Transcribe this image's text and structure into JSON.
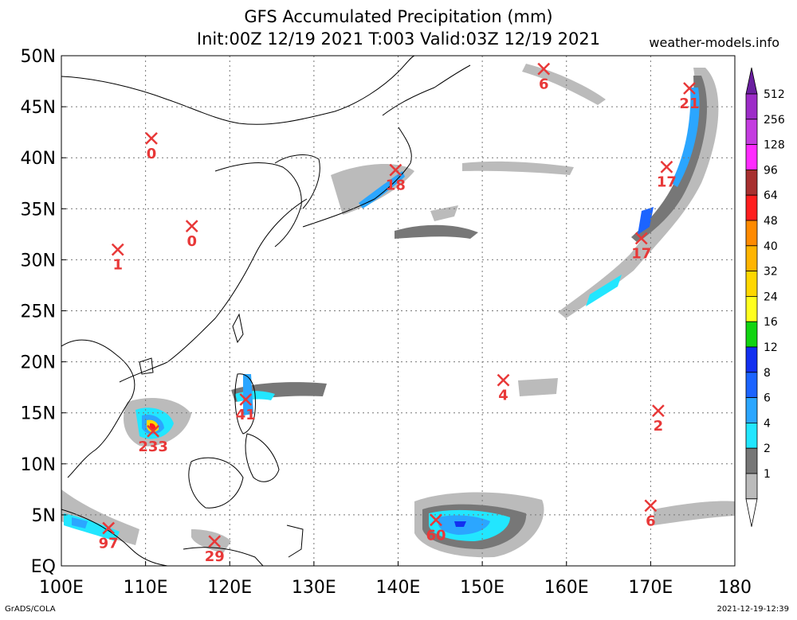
{
  "header": {
    "title_line1": "GFS Accumulated Precipitation (mm)",
    "title_line2": "Init:00Z 12/19 2021 T:003 Valid:03Z 12/19 2021",
    "credit": "weather-models.info"
  },
  "footer": {
    "left": "GrADS/COLA",
    "right": "2021-12-19-12:39"
  },
  "map": {
    "lon_labels": [
      "100E",
      "110E",
      "120E",
      "130E",
      "140E",
      "150E",
      "160E",
      "170E",
      "180"
    ],
    "lat_labels": [
      "50N",
      "45N",
      "40N",
      "35N",
      "30N",
      "25N",
      "20N",
      "15N",
      "10N",
      "5N",
      "EQ"
    ],
    "lon_range": [
      100,
      180
    ],
    "lat_range": [
      0,
      50
    ],
    "grid": "dotted"
  },
  "colorbar": {
    "levels": [
      "512",
      "256",
      "128",
      "96",
      "64",
      "48",
      "40",
      "32",
      "24",
      "16",
      "12",
      "8",
      "6",
      "4",
      "2",
      "1"
    ],
    "colors": [
      "#6a1f9f",
      "#9d2cc8",
      "#c43ce0",
      "#ff2bff",
      "#a8302f",
      "#ff1e1e",
      "#ff8a00",
      "#ffb400",
      "#ffd700",
      "#ffff1f",
      "#11d411",
      "#1230f0",
      "#1c64ff",
      "#2ba6ff",
      "#22e6ff",
      "#777777",
      "#bbbbbb",
      "#ffffff"
    ]
  },
  "markers": [
    {
      "label": "0",
      "lon": 110.7,
      "lat": 41.9
    },
    {
      "label": "0",
      "lon": 115.5,
      "lat": 33.3
    },
    {
      "label": "1",
      "lon": 106.7,
      "lat": 31.0
    },
    {
      "label": "18",
      "lon": 139.7,
      "lat": 38.8
    },
    {
      "label": "6",
      "lon": 157.3,
      "lat": 48.7
    },
    {
      "label": "21",
      "lon": 174.6,
      "lat": 46.8
    },
    {
      "label": "17",
      "lon": 171.9,
      "lat": 39.1
    },
    {
      "label": "17",
      "lon": 168.9,
      "lat": 32.1
    },
    {
      "label": "4",
      "lon": 152.5,
      "lat": 18.2
    },
    {
      "label": "2",
      "lon": 170.9,
      "lat": 15.2
    },
    {
      "label": "41",
      "lon": 121.9,
      "lat": 16.3
    },
    {
      "label": "233",
      "lon": 110.9,
      "lat": 13.2
    },
    {
      "label": "6",
      "lon": 170.0,
      "lat": 5.9
    },
    {
      "label": "60",
      "lon": 144.5,
      "lat": 4.5
    },
    {
      "label": "97",
      "lon": 105.6,
      "lat": 3.7
    },
    {
      "label": "29",
      "lon": 118.2,
      "lat": 2.4
    }
  ]
}
